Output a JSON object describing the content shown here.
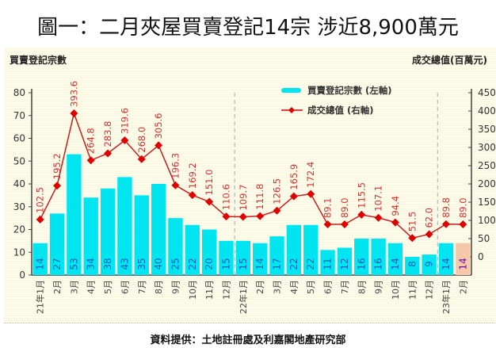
{
  "title": "圖一：二月夾屋買賣登記14宗 涉近8,900萬元",
  "footer": "資料提供：土地註冊處及利嘉閣地產研究部",
  "chart_data": {
    "type": "bar+line",
    "title": "圖一：二月夾屋買賣登記14宗 涉近8,900萬元",
    "ylabel_left": "買賣登記宗數",
    "ylabel_right": "成交總值(百萬元)",
    "ylim_left": [
      0,
      80
    ],
    "yticks_left": [
      0,
      10,
      20,
      30,
      40,
      50,
      60,
      70,
      80
    ],
    "ylim_right": [
      0,
      450
    ],
    "yticks_right": [
      0,
      50,
      100,
      150,
      200,
      250,
      300,
      350,
      400,
      450
    ],
    "legend_position": "top-center",
    "grid": false,
    "categories": [
      "21年1月",
      "2月",
      "3月",
      "4月",
      "5月",
      "6月",
      "7月",
      "8月",
      "9月",
      "10月",
      "11月",
      "12月",
      "22年1月",
      "2月",
      "3月",
      "4月",
      "5月",
      "6月",
      "7月",
      "8月",
      "9月",
      "10月",
      "11月",
      "12月",
      "23年1月",
      "2月"
    ],
    "series": [
      {
        "name": "買賣登記宗數 (左軸)",
        "type": "bar",
        "axis": "left",
        "color": "#00e5f0",
        "highlight_color": "#f5c9a8",
        "values": [
          14,
          27,
          53,
          34,
          38,
          43,
          35,
          40,
          25,
          22,
          20,
          15,
          15,
          14,
          17,
          22,
          22,
          11,
          12,
          16,
          16,
          14,
          8,
          9,
          14,
          14
        ]
      },
      {
        "name": "成交總值 (右軸)",
        "type": "line",
        "axis": "right",
        "color": "#e00000",
        "values": [
          102.5,
          195.2,
          393.6,
          264.8,
          283.8,
          319.6,
          268.0,
          305.6,
          196.3,
          169.2,
          151.0,
          110.6,
          109.7,
          111.8,
          126.5,
          165.9,
          172.4,
          89.1,
          89.0,
          115.5,
          107.1,
          94.4,
          51.5,
          62.0,
          89.8,
          89.0
        ]
      }
    ]
  }
}
